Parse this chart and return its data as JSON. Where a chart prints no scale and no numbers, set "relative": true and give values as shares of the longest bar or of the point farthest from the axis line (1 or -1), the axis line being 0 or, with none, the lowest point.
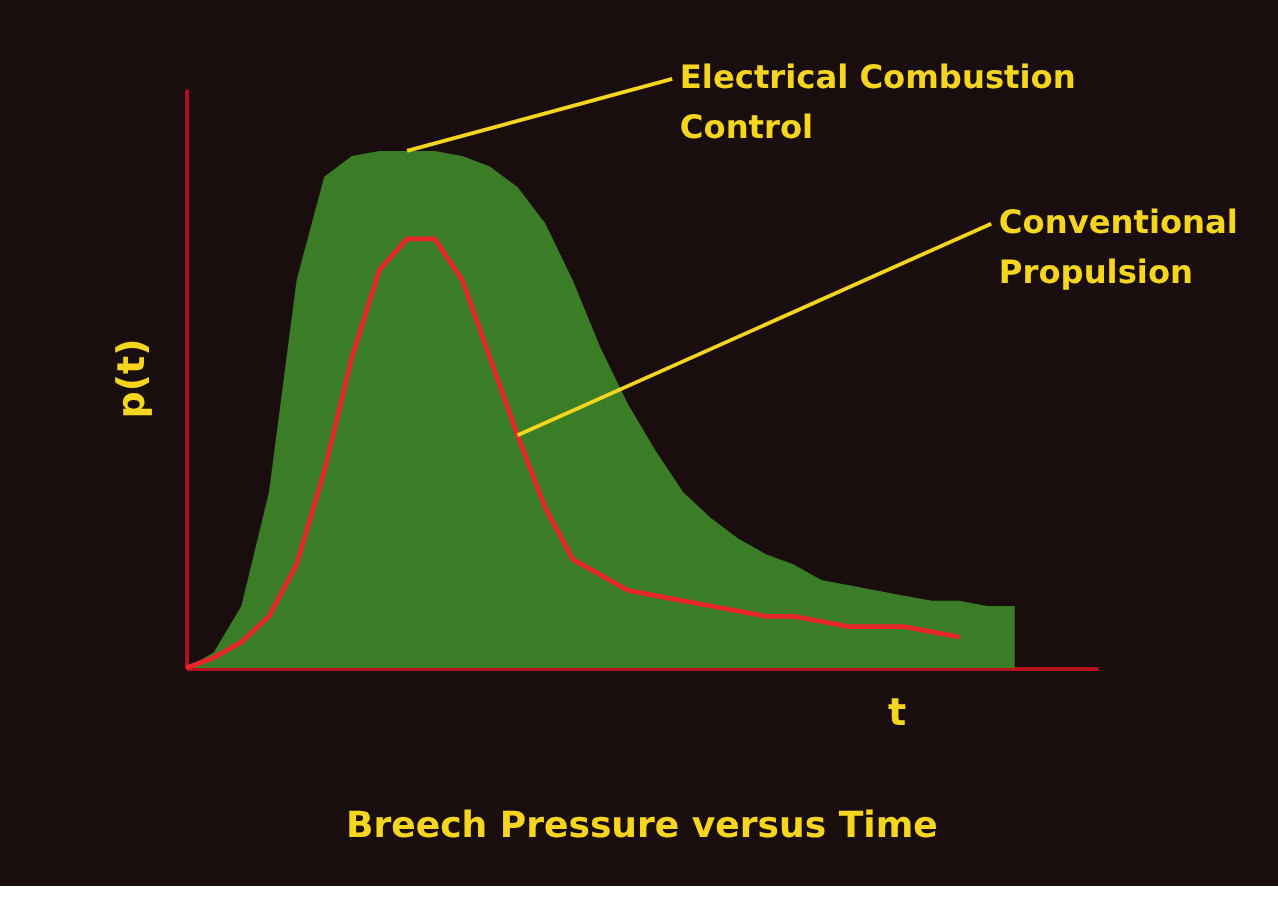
{
  "chart_data": {
    "type": "area",
    "relative": true,
    "title": "Breech Pressure versus Time",
    "xlabel": "t",
    "ylabel": "p(t)",
    "categories": [
      null,
      null,
      null,
      null,
      null,
      null,
      null,
      null,
      null,
      null,
      null,
      null,
      null,
      null,
      null,
      null,
      null,
      null,
      null,
      null,
      null,
      null,
      null,
      null,
      null,
      null,
      null,
      null,
      null,
      null,
      null
    ],
    "series": [
      {
        "name": "Electrical Combustion Control",
        "color": "#3f8a2a",
        "values": [
          0,
          0.03,
          0.12,
          0.34,
          0.75,
          0.95,
          0.99,
          1.0,
          1.0,
          1.0,
          0.99,
          0.97,
          0.93,
          0.86,
          0.75,
          0.62,
          0.51,
          0.42,
          0.34,
          0.29,
          0.25,
          0.22,
          0.2,
          0.17,
          0.16,
          0.15,
          0.14,
          0.13,
          0.13,
          0.12,
          0.12
        ]
      },
      {
        "name": "Conventional Propulsion",
        "type": "line",
        "color": "#e8262a",
        "values": [
          0,
          0.02,
          0.05,
          0.1,
          0.2,
          0.38,
          0.6,
          0.77,
          0.83,
          0.83,
          0.75,
          0.6,
          0.45,
          0.31,
          0.21,
          0.18,
          0.15,
          0.14,
          0.13,
          0.12,
          0.11,
          0.1,
          0.1,
          0.09,
          0.08,
          0.08,
          0.08,
          0.07,
          0.06,
          null,
          null
        ]
      }
    ],
    "tick_labels": false,
    "grid": false,
    "legend": false
  }
}
